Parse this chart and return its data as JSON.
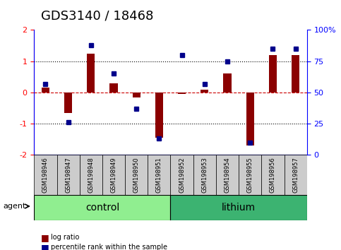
{
  "title": "GDS3140 / 18468",
  "samples": [
    "GSM198946",
    "GSM198947",
    "GSM198948",
    "GSM198949",
    "GSM198950",
    "GSM198951",
    "GSM198952",
    "GSM198953",
    "GSM198954",
    "GSM198955",
    "GSM198956",
    "GSM198957"
  ],
  "log_ratio": [
    0.15,
    -0.65,
    1.25,
    0.3,
    -0.15,
    -1.45,
    -0.05,
    0.1,
    0.6,
    -1.7,
    1.2,
    1.2
  ],
  "percentile_rank": [
    57,
    26,
    88,
    65,
    37,
    13,
    80,
    57,
    75,
    10,
    85,
    85
  ],
  "groups": [
    {
      "label": "control",
      "start": 0,
      "end": 6,
      "color": "#90ee90"
    },
    {
      "label": "lithium",
      "start": 6,
      "end": 12,
      "color": "#3cb371"
    }
  ],
  "ylim_left": [
    -2,
    2
  ],
  "ylim_right": [
    0,
    100
  ],
  "yticks_left": [
    -2,
    -1,
    0,
    1,
    2
  ],
  "yticks_right": [
    0,
    25,
    50,
    75,
    100
  ],
  "bar_color": "#8B0000",
  "dot_color": "#00008B",
  "zero_line_color": "#cc0000",
  "grid_color": "black",
  "bg_color": "white",
  "plot_bg": "white",
  "agent_label": "agent",
  "legend_items": [
    {
      "color": "#8B0000",
      "label": "log ratio"
    },
    {
      "color": "#00008B",
      "label": "percentile rank within the sample"
    }
  ],
  "title_fontsize": 13,
  "tick_fontsize": 7,
  "group_label_fontsize": 10
}
